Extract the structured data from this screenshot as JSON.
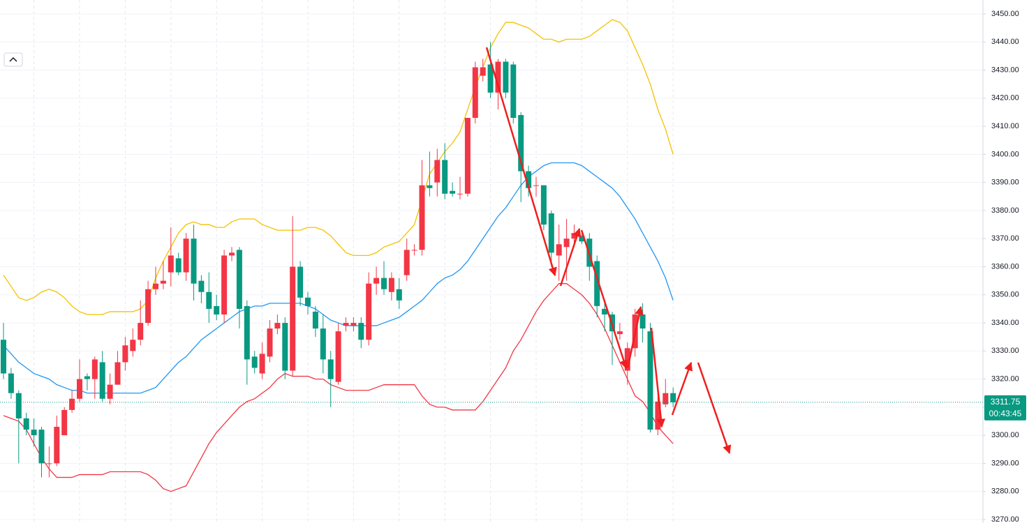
{
  "chart_data": {
    "type": "candlestick",
    "up_color": "#f23645",
    "down_color": "#089981",
    "open": [
      3334,
      3322,
      3315,
      3306,
      3302,
      3302,
      3290,
      3290,
      3300,
      3309,
      3313,
      3321,
      3320,
      3326,
      3313,
      3318,
      3326,
      3330,
      3334,
      3340,
      3352,
      3354,
      3358,
      3363,
      3358,
      3370,
      3355,
      3351,
      3346,
      3343,
      3364,
      3366,
      3346,
      3328,
      3322,
      3328,
      3338,
      3340,
      3323,
      3360,
      3349,
      3344,
      3338,
      3327,
      3319,
      3339,
      3339,
      3340,
      3334,
      3354,
      3356,
      3351,
      3352,
      3357,
      3366,
      3366,
      3389,
      3390,
      3398,
      3387,
      3386,
      3386,
      3413,
      3428,
      3432,
      3422,
      3433,
      3432,
      3414,
      3394,
      3389,
      3389,
      3379,
      3364,
      3367,
      3370,
      3371,
      3370,
      3362,
      3345,
      3343,
      3336,
      3323,
      3331,
      3343,
      3337,
      3302,
      3311,
      3315
    ],
    "high": [
      3340,
      3324,
      3316,
      3308,
      3306,
      3303,
      3296,
      3307,
      3310,
      3316,
      3327,
      3322,
      3328,
      3330,
      3322,
      3330,
      3335,
      3338,
      3348,
      3355,
      3360,
      3362,
      3374,
      3365,
      3372,
      3375,
      3357,
      3358,
      3350,
      3366,
      3367,
      3367,
      3348,
      3330,
      3333,
      3341,
      3343,
      3342,
      3378,
      3362,
      3351,
      3346,
      3343,
      3330,
      3340,
      3342,
      3342,
      3342,
      3358,
      3360,
      3362,
      3358,
      3356,
      3370,
      3368,
      3398,
      3401,
      3402,
      3404,
      3390,
      3392,
      3413,
      3433,
      3434,
      3440,
      3434,
      3434,
      3433,
      3415,
      3396,
      3392,
      3389,
      3380,
      3375,
      3377,
      3375,
      3373,
      3372,
      3364,
      3347,
      3344,
      3340,
      3333,
      3345,
      3347,
      3340,
      3315,
      3320,
      3317
    ],
    "low": [
      3320,
      3313,
      3290,
      3300,
      3296,
      3285,
      3285,
      3289,
      3300,
      3308,
      3312,
      3316,
      3313,
      3312,
      3311,
      3318,
      3323,
      3328,
      3332,
      3339,
      3350,
      3352,
      3353,
      3357,
      3355,
      3348,
      3347,
      3340,
      3341,
      3340,
      3362,
      3338,
      3318,
      3322,
      3320,
      3326,
      3336,
      3320,
      3321,
      3346,
      3343,
      3335,
      3322,
      3310,
      3318,
      3337,
      3337,
      3331,
      3332,
      3350,
      3350,
      3348,
      3345,
      3355,
      3364,
      3364,
      3385,
      3385,
      3384,
      3385,
      3384,
      3385,
      3411,
      3426,
      3420,
      3416,
      3420,
      3411,
      3383,
      3385,
      3385,
      3373,
      3360,
      3355,
      3355,
      3367,
      3368,
      3355,
      3342,
      3337,
      3325,
      3334,
      3318,
      3328,
      3333,
      3301,
      3300,
      3310,
      3310
    ],
    "close": [
      3322,
      3315,
      3306,
      3302,
      3300,
      3290,
      3290,
      3303,
      3309,
      3313,
      3320,
      3320,
      3327,
      3313,
      3318,
      3326,
      3332,
      3334,
      3340,
      3352,
      3354,
      3355,
      3364,
      3358,
      3370,
      3354,
      3351,
      3345,
      3343,
      3364,
      3365,
      3345,
      3327,
      3324,
      3329,
      3338,
      3340,
      3323,
      3360,
      3349,
      3346,
      3338,
      3327,
      3320,
      3337,
      3340,
      3340,
      3334,
      3354,
      3356,
      3352,
      3356,
      3348,
      3366,
      3366,
      3389,
      3388,
      3398,
      3386,
      3386,
      3386,
      3413,
      3431,
      3431,
      3422,
      3433,
      3422,
      3413,
      3394,
      3388,
      3389,
      3375,
      3365,
      3368,
      3370,
      3372,
      3369,
      3360,
      3346,
      3343,
      3337,
      3337,
      3331,
      3343,
      3338,
      3302,
      3312,
      3315,
      3311.75
    ],
    "overlays": [
      {
        "color": "#f2c200",
        "values": [
          3357,
          3353,
          3349,
          3348,
          3349,
          3351,
          3352,
          3351,
          3349,
          3346,
          3344,
          3343,
          3343,
          3343,
          3344,
          3344,
          3344,
          3344,
          3345,
          3348,
          3356,
          3362,
          3367,
          3372,
          3375,
          3376,
          3375,
          3375,
          3374,
          3374,
          3376,
          3377,
          3377,
          3377,
          3375,
          3374,
          3373,
          3373,
          3373,
          3373,
          3374,
          3374,
          3373,
          3371,
          3368,
          3365,
          3364,
          3364,
          3364,
          3365,
          3367,
          3368,
          3369,
          3372,
          3375,
          3384,
          3393,
          3397,
          3401,
          3404,
          3408,
          3416,
          3424,
          3431,
          3438,
          3443,
          3447,
          3447,
          3446,
          3445,
          3443,
          3441,
          3441,
          3440,
          3441,
          3441,
          3441,
          3442,
          3444,
          3446,
          3448,
          3447,
          3444,
          3438,
          3432,
          3425,
          3416,
          3409,
          3400
        ]
      },
      {
        "color": "#2196f3",
        "values": [
          3332,
          3329,
          3326,
          3324,
          3322,
          3321,
          3320,
          3318,
          3317,
          3316,
          3316,
          3315,
          3315,
          3315,
          3315,
          3315,
          3315,
          3315,
          3315,
          3316,
          3317,
          3320,
          3323,
          3326,
          3328,
          3331,
          3334,
          3336,
          3338,
          3340,
          3342,
          3344,
          3345,
          3346,
          3346,
          3347,
          3347,
          3347,
          3347,
          3347,
          3346,
          3345,
          3343,
          3341,
          3340,
          3339,
          3339,
          3339,
          3339,
          3339,
          3340,
          3341,
          3342,
          3344,
          3346,
          3348,
          3351,
          3354,
          3356,
          3357,
          3359,
          3362,
          3366,
          3370,
          3374,
          3378,
          3381,
          3385,
          3389,
          3392,
          3394,
          3396,
          3397,
          3397,
          3397,
          3397,
          3396,
          3394,
          3392,
          3390,
          3388,
          3385,
          3381,
          3377,
          3372,
          3367,
          3362,
          3356,
          3348
        ]
      },
      {
        "color": "#f23645",
        "values": [
          3307,
          3306,
          3305,
          3302,
          3297,
          3292,
          3288,
          3285,
          3285,
          3285,
          3286,
          3286,
          3286,
          3286,
          3287,
          3287,
          3287,
          3287,
          3287,
          3286,
          3284,
          3281,
          3280,
          3281,
          3282,
          3287,
          3292,
          3297,
          3301,
          3304,
          3307,
          3310,
          3312,
          3313,
          3315,
          3317,
          3320,
          3322,
          3321,
          3321,
          3321,
          3320,
          3320,
          3318,
          3317,
          3316,
          3316,
          3316,
          3316,
          3317,
          3318,
          3318,
          3318,
          3318,
          3318,
          3314,
          3311,
          3310,
          3310,
          3309,
          3309,
          3309,
          3309,
          3312,
          3316,
          3320,
          3324,
          3330,
          3334,
          3339,
          3344,
          3348,
          3351,
          3354,
          3354,
          3352,
          3350,
          3347,
          3343,
          3338,
          3332,
          3326,
          3320,
          3314,
          3312,
          3308,
          3303,
          3300,
          3297
        ]
      }
    ],
    "ylim": [
      3270,
      3450
    ],
    "yticks": [
      {
        "value": 3270,
        "label": "3270.00"
      },
      {
        "value": 3280,
        "label": "3280.00"
      },
      {
        "value": 3290,
        "label": "3290.00"
      },
      {
        "value": 3300,
        "label": "3300.00"
      },
      {
        "value": 3310,
        "label": "3310.00"
      },
      {
        "value": 3320,
        "label": "3320.00"
      },
      {
        "value": 3330,
        "label": "3330.00"
      },
      {
        "value": 3340,
        "label": "3340.00"
      },
      {
        "value": 3350,
        "label": "3350.00"
      },
      {
        "value": 3360,
        "label": "3360.00"
      },
      {
        "value": 3370,
        "label": "3370.00"
      },
      {
        "value": 3380,
        "label": "3380.00"
      },
      {
        "value": 3390,
        "label": "3390.00"
      },
      {
        "value": 3400,
        "label": "3400.00"
      },
      {
        "value": 3410,
        "label": "3410.00"
      },
      {
        "value": 3420,
        "label": "3420.00"
      },
      {
        "value": 3430,
        "label": "3430.00"
      },
      {
        "value": 3440,
        "label": "3440.00"
      },
      {
        "value": 3450,
        "label": "3450.00"
      }
    ],
    "grid": true,
    "last_price": 3311.75,
    "countdown": "00:43:45"
  }
}
